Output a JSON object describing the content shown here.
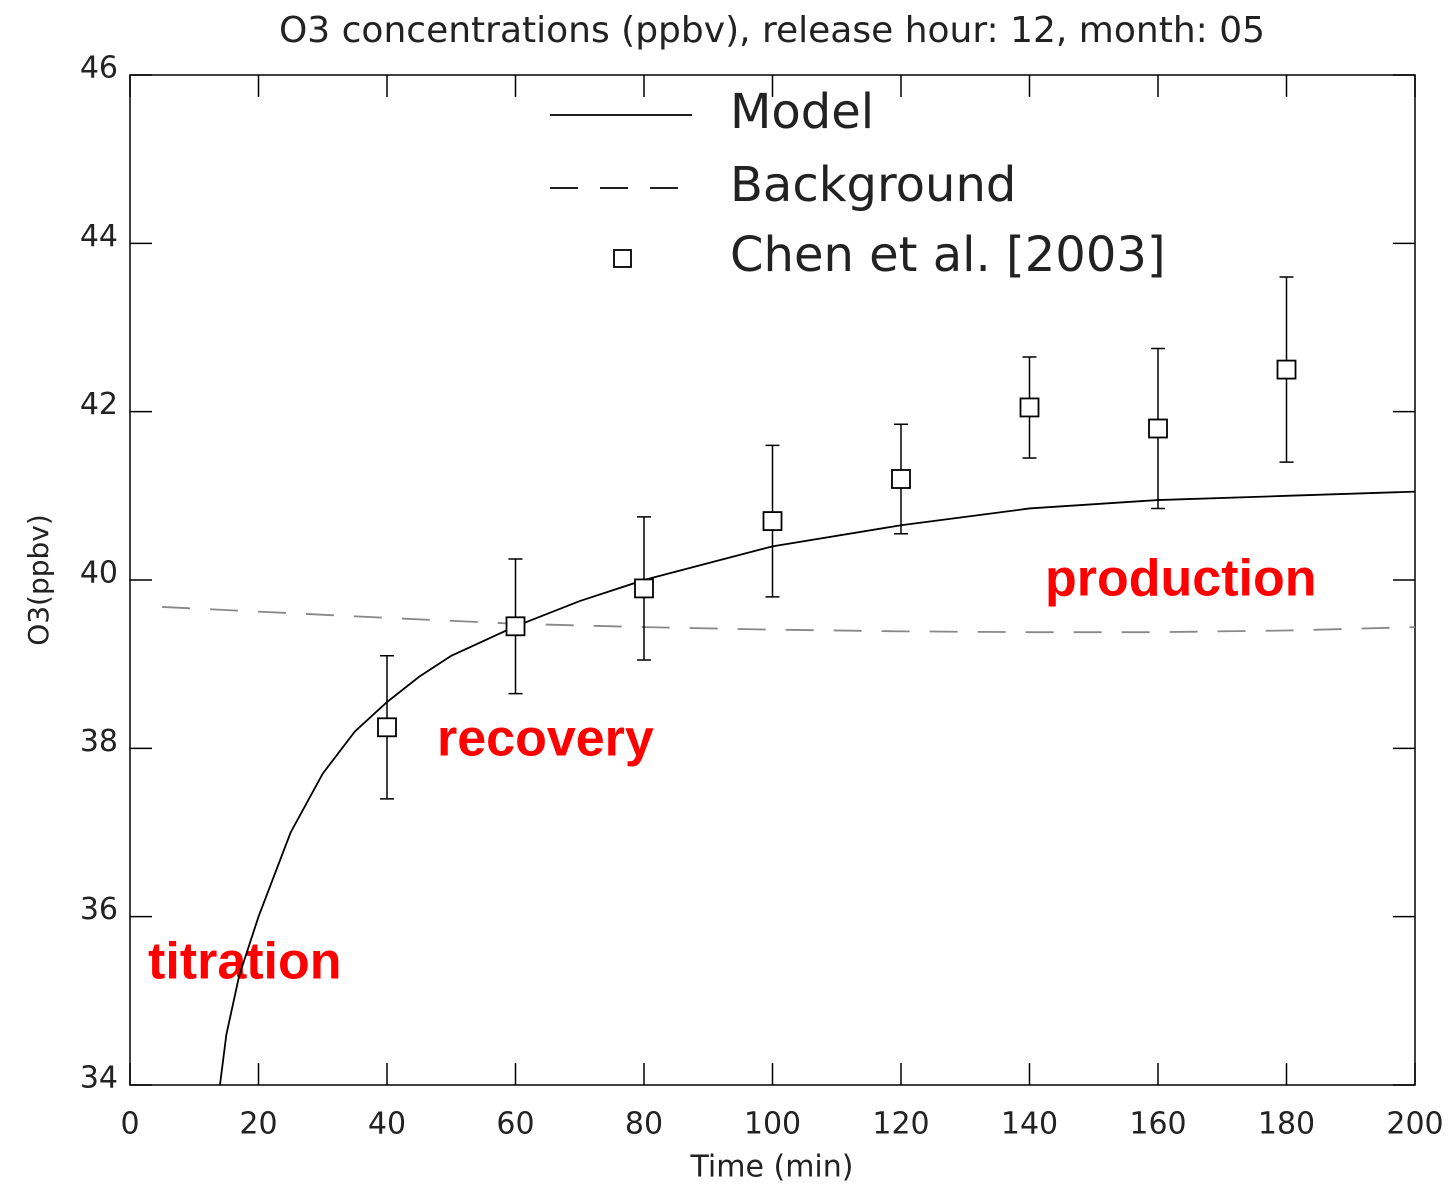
{
  "chart_data": {
    "type": "line",
    "title": "O3 concentrations (ppbv), release hour: 12, month: 05",
    "xlabel": "Time (min)",
    "ylabel": "O3(ppbv)",
    "xlim": [
      0,
      200
    ],
    "ylim": [
      34,
      46
    ],
    "xticks": [
      0,
      20,
      40,
      60,
      80,
      100,
      120,
      140,
      160,
      180,
      200
    ],
    "yticks": [
      34,
      36,
      38,
      40,
      42,
      44,
      46
    ],
    "series": [
      {
        "name": "Model",
        "color": "#000000",
        "style": "solid",
        "x": [
          14,
          15,
          17,
          20,
          25,
          30,
          35,
          40,
          45,
          50,
          60,
          70,
          80,
          90,
          100,
          120,
          140,
          160,
          180,
          200
        ],
        "values": [
          34,
          34.6,
          35.3,
          36,
          37,
          37.7,
          38.2,
          38.55,
          38.85,
          39.1,
          39.45,
          39.75,
          40.0,
          40.2,
          40.4,
          40.65,
          40.85,
          40.95,
          41.0,
          41.05
        ]
      },
      {
        "name": "Background",
        "color": "#888888",
        "style": "dashed",
        "x": [
          5,
          40,
          60,
          80,
          100,
          120,
          140,
          160,
          180,
          200
        ],
        "values": [
          39.68,
          39.55,
          39.48,
          39.44,
          39.41,
          39.39,
          39.38,
          39.38,
          39.4,
          39.44
        ]
      },
      {
        "name": "Chen et al. [2003]",
        "color": "#000000",
        "style": "marker",
        "x": [
          40,
          60,
          80,
          100,
          120,
          140,
          160,
          180
        ],
        "values": [
          38.25,
          39.45,
          39.9,
          40.7,
          41.2,
          42.05,
          41.8,
          42.5
        ],
        "errors": [
          0.85,
          0.8,
          0.85,
          0.9,
          0.65,
          0.6,
          0.95,
          1.1
        ]
      }
    ],
    "annotations": [
      "titration",
      "recovery",
      "production"
    ]
  }
}
